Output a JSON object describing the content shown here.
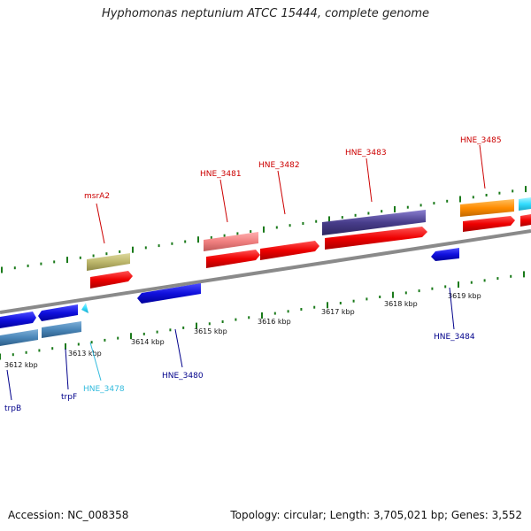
{
  "title": "Hyphomonas neptunium ATCC 15444, complete genome",
  "footer": {
    "accession": "Accession: NC_008358",
    "topology": "Topology: circular; Length: 3,705,021 bp; Genes: 3,552"
  },
  "colors": {
    "backbone": "#8a8a8a",
    "tick": "#1a7a1a",
    "forward_label": "#cc0000",
    "reverse_label": "#00008b",
    "cyan_label": "#33bbdd"
  },
  "ticks": [
    {
      "label": "3612 kbp"
    },
    {
      "label": "3613 kbp"
    },
    {
      "label": "3614 kbp"
    },
    {
      "label": "3615 kbp"
    },
    {
      "label": "3616 kbp"
    },
    {
      "label": "3617 kbp"
    },
    {
      "label": "3618 kbp"
    },
    {
      "label": "3619 kbp"
    }
  ],
  "genes": [
    {
      "label": "trpB",
      "strand": "reverse",
      "color": "#1010dd"
    },
    {
      "label": "trpF",
      "strand": "reverse",
      "color": "#1010dd"
    },
    {
      "label": "HNE_3478",
      "strand": "reverse",
      "color": "#44ccee"
    },
    {
      "label": "HNE_3480",
      "strand": "reverse",
      "color": "#1010dd"
    },
    {
      "label": "msrA2",
      "strand": "forward",
      "color": "#ee0000"
    },
    {
      "label": "HNE_3481",
      "strand": "forward",
      "color": "#ee0000"
    },
    {
      "label": "HNE_3482",
      "strand": "forward",
      "color": "#ee0000"
    },
    {
      "label": "HNE_3483",
      "strand": "forward",
      "color": "#ee0000"
    },
    {
      "label": "HNE_3484",
      "strand": "reverse",
      "color": "#1010dd"
    },
    {
      "label": "HNE_3485",
      "strand": "forward",
      "color": "#ee0000"
    }
  ]
}
